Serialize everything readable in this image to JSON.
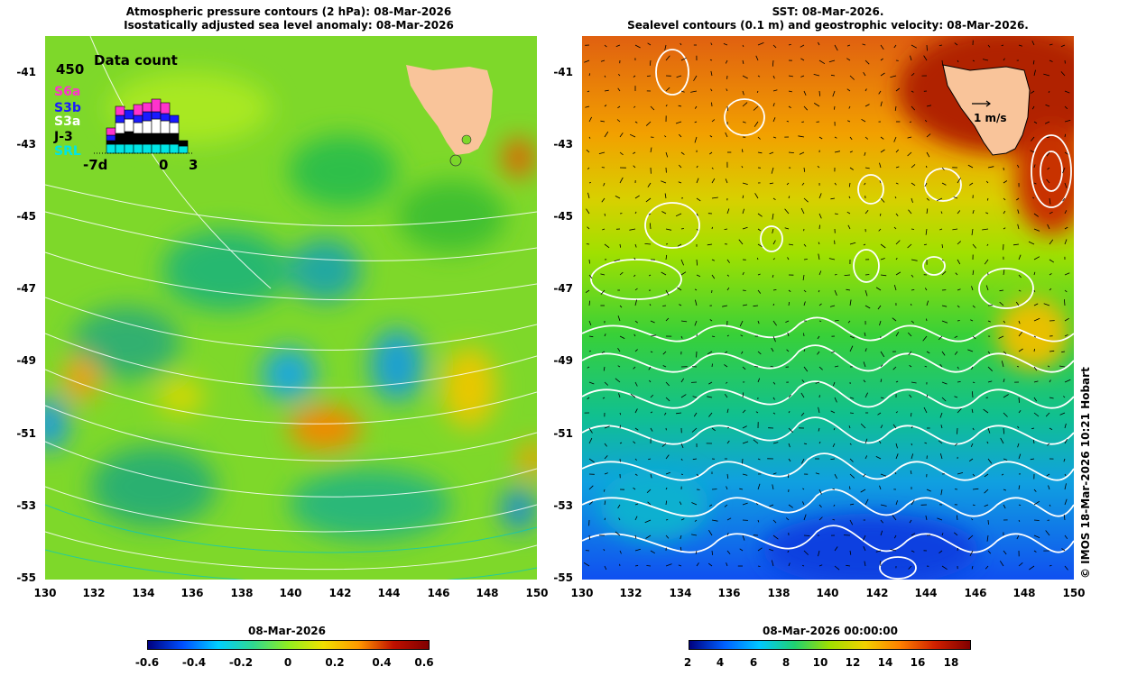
{
  "left_panel": {
    "title_line1": "Atmospheric pressure contours (2 hPa): 08-Mar-2026",
    "title_line2": "Isostatically adjusted sea level anomaly: 08-Mar-2026",
    "inset": {
      "title": "Data count",
      "max_label": "450",
      "missions": [
        "S6a",
        "S3b",
        "S3a",
        "J-3",
        "SRL"
      ],
      "mission_colors": [
        "#ff33cc",
        "#1a1aff",
        "#ffffff",
        "#000000",
        "#00e5e5"
      ],
      "x_labels": [
        "-7d",
        "0",
        "3"
      ]
    },
    "colorbar": {
      "title": "08-Mar-2026",
      "ticks": [
        "-0.6",
        "-0.4",
        "-0.2",
        "0",
        "0.2",
        "0.4",
        "0.6"
      ]
    }
  },
  "right_panel": {
    "title_line1": "SST: 08-Mar-2026.",
    "title_line2": "Sealevel contours (0.1 m) and geostrophic velocity: 08-Mar-2026.",
    "velocity_label": "1 m/s",
    "colorbar": {
      "title": "08-Mar-2026 00:00:00",
      "ticks": [
        "2",
        "4",
        "6",
        "8",
        "10",
        "12",
        "14",
        "16",
        "18"
      ]
    },
    "copyright": "© IMOS 18-Mar-2026 10:21 Hobart"
  },
  "axes": {
    "y_labels": [
      "-41",
      "-43",
      "-45",
      "-47",
      "-49",
      "-51",
      "-53",
      "-55"
    ],
    "x_labels": [
      "130",
      "132",
      "134",
      "136",
      "138",
      "140",
      "142",
      "144",
      "146",
      "148",
      "150"
    ]
  },
  "colors": {
    "land": "#f9c49a",
    "sla_scale": [
      "#000080",
      "#0050ff",
      "#00d0ff",
      "#40e080",
      "#90ee20",
      "#f0e000",
      "#ff9900",
      "#c01000",
      "#800000"
    ],
    "sst_scale": [
      "#000080",
      "#0060ff",
      "#00c8ff",
      "#20d070",
      "#a0e000",
      "#f0d000",
      "#ff8000",
      "#d02000",
      "#800000"
    ]
  }
}
